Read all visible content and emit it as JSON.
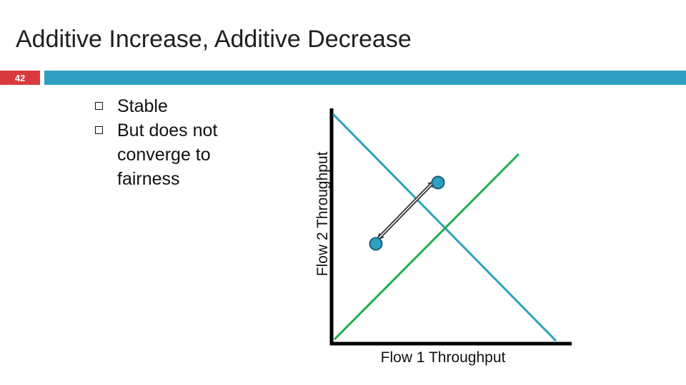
{
  "slide": {
    "title": "Additive Increase, Additive Decrease",
    "number": "42",
    "accent_red": "#d93a3e",
    "accent_blue": "#2e9fc1"
  },
  "bullets": [
    "Stable",
    "But does not converge to fairness"
  ],
  "diagram": {
    "x_axis_label": "Flow 1 Throughput",
    "y_axis_label": "Flow 2 Throughput",
    "efficiency_line_color": "#2aa3ba",
    "fairness_line_color": "#1fad4c",
    "point_color": "#2e9fc1",
    "arrow_color": "#333333"
  }
}
